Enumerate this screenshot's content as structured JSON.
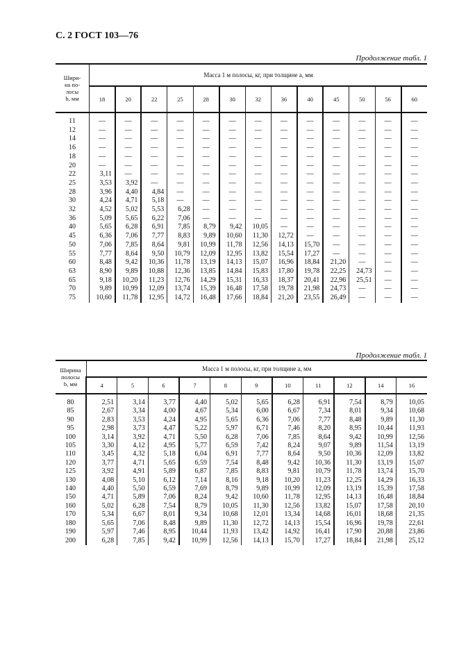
{
  "page_header": "С. 2 ГОСТ 103—76",
  "table1": {
    "continuation": "Продолжение табл. 1",
    "width_header": "Шири-\nна по-\nлосы\nb, мм",
    "mass_header": "Масса 1 м полосы, кг, при толщине a, мм",
    "thicknesses": [
      "18",
      "20",
      "22",
      "25",
      "28",
      "30",
      "32",
      "36",
      "40",
      "45",
      "50",
      "56",
      "60"
    ],
    "rows": [
      {
        "b": "11",
        "v": [
          "—",
          "—",
          "—",
          "—",
          "—",
          "—",
          "—",
          "—",
          "—",
          "—",
          "—",
          "—",
          "—"
        ]
      },
      {
        "b": "12",
        "v": [
          "—",
          "—",
          "—",
          "—",
          "—",
          "—",
          "—",
          "—",
          "—",
          "—",
          "—",
          "—",
          "—"
        ]
      },
      {
        "b": "14",
        "v": [
          "—",
          "—",
          "—",
          "—",
          "—",
          "—",
          "—",
          "—",
          "—",
          "—",
          "—",
          "—",
          "—"
        ]
      },
      {
        "b": "16",
        "v": [
          "—",
          "—",
          "—",
          "—",
          "—",
          "—",
          "—",
          "—",
          "—",
          "—",
          "—",
          "—",
          "—"
        ]
      },
      {
        "b": "18",
        "v": [
          "—",
          "—",
          "—",
          "—",
          "—",
          "—",
          "—",
          "—",
          "—",
          "—",
          "—",
          "—",
          "—"
        ]
      },
      {
        "b": "20",
        "v": [
          "—",
          "—",
          "—",
          "—",
          "—",
          "—",
          "—",
          "—",
          "—",
          "—",
          "—",
          "—",
          "—"
        ]
      },
      {
        "b": "22",
        "v": [
          "3,11",
          "—",
          "—",
          "—",
          "—",
          "—",
          "—",
          "—",
          "—",
          "—",
          "—",
          "—",
          "—"
        ]
      },
      {
        "b": "25",
        "v": [
          "3,53",
          "3,92",
          "—",
          "—",
          "—",
          "—",
          "—",
          "—",
          "—",
          "—",
          "—",
          "—",
          "—"
        ]
      },
      {
        "b": "28",
        "v": [
          "3,96",
          "4,40",
          "4,84",
          "—",
          "—",
          "—",
          "—",
          "—",
          "—",
          "—",
          "—",
          "—",
          "—"
        ]
      },
      {
        "b": "30",
        "v": [
          "4,24",
          "4,71",
          "5,18",
          "—",
          "—",
          "—",
          "—",
          "—",
          "—",
          "—",
          "—",
          "—",
          "—"
        ]
      },
      {
        "b": "32",
        "v": [
          "4,52",
          "5,02",
          "5,53",
          "6,28",
          "—",
          "—",
          "—",
          "—",
          "—",
          "—",
          "—",
          "—",
          "—"
        ]
      },
      {
        "b": "36",
        "v": [
          "5,09",
          "5,65",
          "6,22",
          "7,06",
          "—",
          "—",
          "—",
          "—",
          "—",
          "—",
          "—",
          "—",
          "—"
        ]
      },
      {
        "b": "40",
        "v": [
          "5,65",
          "6,28",
          "6,91",
          "7,85",
          "8,79",
          "9,42",
          "10,05",
          "—",
          "—",
          "—",
          "—",
          "—",
          "—"
        ]
      },
      {
        "b": "45",
        "v": [
          "6,36",
          "7,06",
          "7,77",
          "8,83",
          "9,89",
          "10,60",
          "11,30",
          "12,72",
          "—",
          "—",
          "—",
          "—",
          "—"
        ]
      },
      {
        "b": "50",
        "v": [
          "7,06",
          "7,85",
          "8,64",
          "9,81",
          "10,99",
          "11,78",
          "12,56",
          "14,13",
          "15,70",
          "—",
          "—",
          "—",
          "—"
        ]
      },
      {
        "b": "55",
        "v": [
          "7,77",
          "8,64",
          "9,50",
          "10,79",
          "12,09",
          "12,95",
          "13,82",
          "15,54",
          "17,27",
          "—",
          "—",
          "—",
          "—"
        ]
      },
      {
        "b": "60",
        "v": [
          "8,48",
          "9,42",
          "10,36",
          "11,78",
          "13,19",
          "14,13",
          "15,07",
          "16,96",
          "18,84",
          "21,20",
          "—",
          "—",
          "—"
        ]
      },
      {
        "b": "63",
        "v": [
          "8,90",
          "9,89",
          "10,88",
          "12,36",
          "13,85",
          "14,84",
          "15,83",
          "17,80",
          "19,78",
          "22,25",
          "24,73",
          "—",
          "—"
        ]
      },
      {
        "b": "65",
        "v": [
          "9,18",
          "10,20",
          "11,23",
          "12,76",
          "14,29",
          "15,31",
          "16,33",
          "18,37",
          "20,41",
          "22,96",
          "25,51",
          "—",
          "—"
        ]
      },
      {
        "b": "70",
        "v": [
          "9,89",
          "10,99",
          "12,09",
          "13,74",
          "15,39",
          "16,48",
          "17,58",
          "19,78",
          "21,98",
          "24,73",
          "—",
          "—",
          "—"
        ]
      },
      {
        "b": "75",
        "v": [
          "10,60",
          "11,78",
          "12,95",
          "14,72",
          "16,48",
          "17,66",
          "18,84",
          "21,20",
          "23,55",
          "26,49",
          "—",
          "—",
          "—"
        ]
      }
    ]
  },
  "table2": {
    "continuation": "Продолжение табл. 1",
    "width_header": "Ширина\nполосы\nb, мм",
    "mass_header": "Масса 1 м полосы, кг, при толщине a, мм",
    "thicknesses": [
      "4",
      "5",
      "6",
      "7",
      "8",
      "9",
      "10",
      "11",
      "12",
      "14",
      "16"
    ],
    "rows": [
      {
        "b": "80",
        "v": [
          "2,51",
          "3,14",
          "3,77",
          "4,40",
          "5,02",
          "5,65",
          "6,28",
          "6,91",
          "7,54",
          "8,79",
          "10,05"
        ]
      },
      {
        "b": "85",
        "v": [
          "2,67",
          "3,34",
          "4,00",
          "4,67",
          "5,34",
          "6,00",
          "6,67",
          "7,34",
          "8,01",
          "9,34",
          "10,68"
        ]
      },
      {
        "b": "90",
        "v": [
          "2,83",
          "3,53",
          "4,24",
          "4,95",
          "5,65",
          "6,36",
          "7,06",
          "7,77",
          "8,48",
          "9,89",
          "11,30"
        ]
      },
      {
        "b": "95",
        "v": [
          "2,98",
          "3,73",
          "4,47",
          "5,22",
          "5,97",
          "6,71",
          "7,46",
          "8,20",
          "8,95",
          "10,44",
          "11,93"
        ]
      },
      {
        "b": "100",
        "v": [
          "3,14",
          "3,92",
          "4,71",
          "5,50",
          "6,28",
          "7,06",
          "7,85",
          "8,64",
          "9,42",
          "10,99",
          "12,56"
        ]
      },
      {
        "b": "105",
        "v": [
          "3,30",
          "4,12",
          "4,95",
          "5,77",
          "6,59",
          "7,42",
          "8,24",
          "9,07",
          "9,89",
          "11,54",
          "13,19"
        ]
      },
      {
        "b": "110",
        "v": [
          "3,45",
          "4,32",
          "5,18",
          "6,04",
          "6,91",
          "7,77",
          "8,64",
          "9,50",
          "10,36",
          "12,09",
          "13,82"
        ]
      },
      {
        "b": "120",
        "v": [
          "3,77",
          "4,71",
          "5,65",
          "6,59",
          "7,54",
          "8,48",
          "9,42",
          "10,36",
          "11,30",
          "13,19",
          "15,07"
        ]
      },
      {
        "b": "125",
        "v": [
          "3,92",
          "4,91",
          "5,89",
          "6,87",
          "7,85",
          "8,83",
          "9,81",
          "10,79",
          "11,78",
          "13,74",
          "15,70"
        ]
      },
      {
        "b": "130",
        "v": [
          "4,08",
          "5,10",
          "6,12",
          "7,14",
          "8,16",
          "9,18",
          "10,20",
          "11,23",
          "12,25",
          "14,29",
          "16,33"
        ]
      },
      {
        "b": "140",
        "v": [
          "4,40",
          "5,50",
          "6,59",
          "7,69",
          "8,79",
          "9,89",
          "10,99",
          "12,09",
          "13,19",
          "15,39",
          "17,58"
        ]
      },
      {
        "b": "150",
        "v": [
          "4,71",
          "5,89",
          "7,06",
          "8,24",
          "9,42",
          "10,60",
          "11,78",
          "12,95",
          "14,13",
          "16,48",
          "18,84"
        ]
      },
      {
        "b": "160",
        "v": [
          "5,02",
          "6,28",
          "7,54",
          "8,79",
          "10,05",
          "11,30",
          "12,56",
          "13,82",
          "15,07",
          "17,58",
          "20,10"
        ]
      },
      {
        "b": "170",
        "v": [
          "5,34",
          "6,67",
          "8,01",
          "9,34",
          "10,68",
          "12,01",
          "13,34",
          "14,68",
          "16,01",
          "18,68",
          "21,35"
        ]
      },
      {
        "b": "180",
        "v": [
          "5,65",
          "7,06",
          "8,48",
          "9,89",
          "11,30",
          "12,72",
          "14,13",
          "15,54",
          "16,96",
          "19,78",
          "22,61"
        ]
      },
      {
        "b": "190",
        "v": [
          "5,97",
          "7,46",
          "8,95",
          "10,44",
          "11,93",
          "13,42",
          "14,92",
          "16,41",
          "17,90",
          "20,88",
          "23,86"
        ]
      },
      {
        "b": "200",
        "v": [
          "6,28",
          "7,85",
          "9,42",
          "10,99",
          "12,56",
          "14,13",
          "15,70",
          "17,27",
          "18,84",
          "21,98",
          "25,12"
        ]
      }
    ]
  }
}
